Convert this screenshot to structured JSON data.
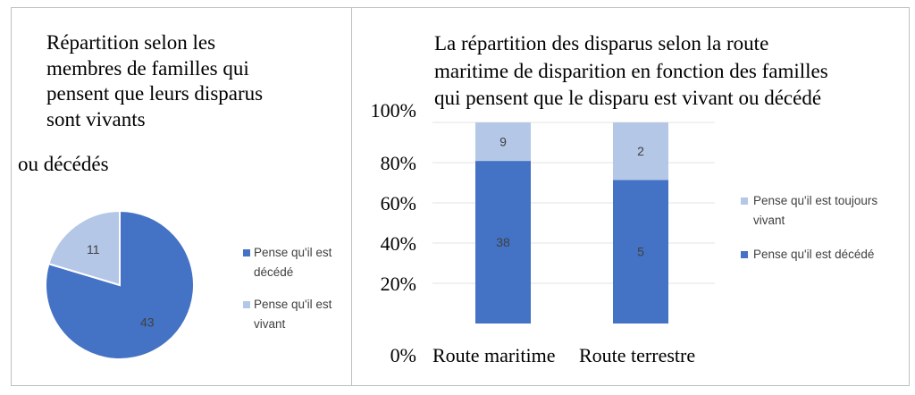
{
  "chart_data": [
    {
      "type": "pie",
      "title_lines": [
        "Répartition selon les",
        "membres de familles qui",
        "pensent que leurs disparus",
        "sont vivants"
      ],
      "title_tail": "ou décédés",
      "slices": [
        {
          "label": "Pense qu'il est décédé",
          "value": 43,
          "color": "#4472c4"
        },
        {
          "label": "Pense qu'il est vivant",
          "value": 11,
          "color": "#b4c7e7"
        }
      ],
      "legend": [
        "Pense qu'il est décédé",
        "Pense qu'il est vivant"
      ],
      "legend_placement": "right"
    },
    {
      "type": "bar",
      "stacked": "percent",
      "title_lines": [
        "La répartition des disparus selon la route",
        "maritime de disparition en fonction des familles",
        "qui pensent que le disparu est vivant ou décédé"
      ],
      "categories": [
        "Route maritime",
        "Route terrestre"
      ],
      "series": [
        {
          "name": "Pense qu'il est décédé",
          "values": [
            38,
            5
          ],
          "color": "#4472c4"
        },
        {
          "name": "Pense qu'il est toujours vivant",
          "values": [
            9,
            2
          ],
          "color": "#b4c7e7"
        }
      ],
      "y_ticks": [
        "0%",
        "20%",
        "40%",
        "60%",
        "80%",
        "100%"
      ],
      "ylim": [
        0,
        100
      ],
      "grid": true,
      "legend_placement": "right"
    }
  ]
}
